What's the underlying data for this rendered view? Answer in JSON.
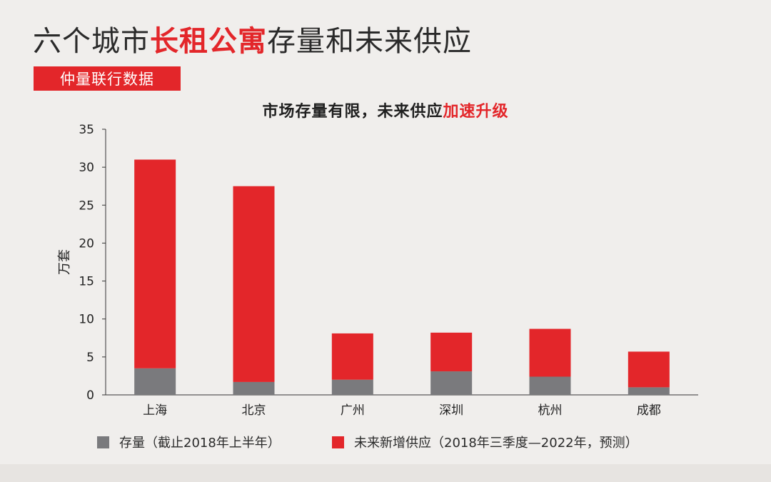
{
  "header": {
    "title_pre": "六个城市",
    "title_highlight": "长租公寓",
    "title_post": "存量和未来供应",
    "source": "仲量联行数据"
  },
  "chart_data": {
    "type": "bar",
    "stacked": true,
    "title_plain": "市场存量有限，未来供应",
    "title_highlight": "加速升级",
    "ylabel": "万套",
    "ylim": [
      0,
      35
    ],
    "yticks": [
      0,
      5,
      10,
      15,
      20,
      25,
      30,
      35
    ],
    "categories": [
      "上海",
      "北京",
      "广州",
      "深圳",
      "杭州",
      "成都"
    ],
    "series": [
      {
        "name": "存量（截止2018年上半年）",
        "color": "#7a7a7d",
        "values": [
          3.5,
          1.7,
          2.0,
          3.1,
          2.4,
          1.0
        ]
      },
      {
        "name": "未来新增供应（2018年三季度—2022年，预测）",
        "color": "#e3262a",
        "values": [
          27.5,
          25.8,
          6.1,
          5.1,
          6.3,
          4.7
        ]
      }
    ],
    "grid": false,
    "legend": "bottom"
  }
}
